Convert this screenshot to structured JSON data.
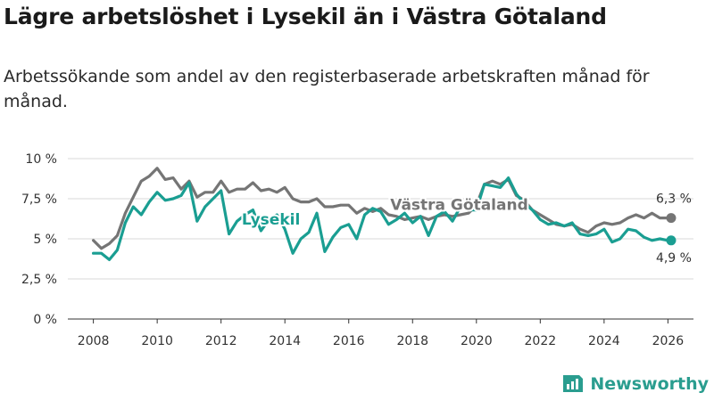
{
  "title": "Lägre arbetslöshet i Lysekil än i Västra Götaland",
  "subtitle": "Arbetssökande som andel av den registerbaserade arbetskraften månad för månad.",
  "brand": "Newsworthy",
  "colors": {
    "lysekil": "#1a9e92",
    "vg": "#757575",
    "brand": "#2a9d8f"
  },
  "chart_data": {
    "type": "line",
    "title": "Lägre arbetslöshet i Lysekil än i Västra Götaland",
    "xlabel": "",
    "ylabel": "",
    "xlim": [
      2007.2,
      2026.8
    ],
    "ylim": [
      0,
      10
    ],
    "x_ticks": [
      2008,
      2010,
      2012,
      2014,
      2016,
      2018,
      2020,
      2022,
      2024,
      2026
    ],
    "x_tick_labels": [
      "2008",
      "2010",
      "2012",
      "2014",
      "2016",
      "2018",
      "2020",
      "2022",
      "2024",
      "2026"
    ],
    "y_ticks": [
      0,
      2.5,
      5,
      7.5,
      10
    ],
    "y_tick_labels": [
      "0 %",
      "2,5 %",
      "5 %",
      "7,5 %",
      "10 %"
    ],
    "grid": true,
    "series": [
      {
        "name": "Västra Götaland",
        "end_label": "6,3 %",
        "x": [
          2008.0,
          2008.25,
          2008.5,
          2008.75,
          2009.0,
          2009.25,
          2009.5,
          2009.75,
          2010.0,
          2010.25,
          2010.5,
          2010.75,
          2011.0,
          2011.25,
          2011.5,
          2011.75,
          2012.0,
          2012.25,
          2012.5,
          2012.75,
          2013.0,
          2013.25,
          2013.5,
          2013.75,
          2014.0,
          2014.25,
          2014.5,
          2014.75,
          2015.0,
          2015.25,
          2015.5,
          2015.75,
          2016.0,
          2016.25,
          2016.5,
          2016.75,
          2017.0,
          2017.25,
          2017.5,
          2017.75,
          2018.0,
          2018.25,
          2018.5,
          2018.75,
          2019.0,
          2019.25,
          2019.5,
          2019.75,
          2020.0,
          2020.25,
          2020.5,
          2020.75,
          2021.0,
          2021.25,
          2021.5,
          2021.75,
          2022.0,
          2022.25,
          2022.5,
          2022.75,
          2023.0,
          2023.25,
          2023.5,
          2023.75,
          2024.0,
          2024.25,
          2024.5,
          2024.75,
          2025.0,
          2025.25,
          2025.5,
          2025.75,
          2026.0,
          2026.1
        ],
        "values": [
          4.9,
          4.4,
          4.7,
          5.2,
          6.6,
          7.6,
          8.6,
          8.9,
          9.4,
          8.7,
          8.8,
          8.1,
          8.6,
          7.6,
          7.9,
          7.9,
          8.6,
          7.9,
          8.1,
          8.1,
          8.5,
          8.0,
          8.1,
          7.9,
          8.2,
          7.5,
          7.3,
          7.3,
          7.5,
          7.0,
          7.0,
          7.1,
          7.1,
          6.6,
          6.9,
          6.7,
          6.9,
          6.5,
          6.4,
          6.2,
          6.3,
          6.4,
          6.2,
          6.4,
          6.5,
          6.4,
          6.5,
          6.6,
          7.1,
          8.4,
          8.6,
          8.4,
          8.7,
          7.7,
          7.4,
          6.8,
          6.5,
          6.2,
          5.9,
          5.8,
          5.9,
          5.6,
          5.4,
          5.8,
          6.0,
          5.9,
          6.0,
          6.3,
          6.5,
          6.3,
          6.6,
          6.3,
          6.3,
          6.3
        ]
      },
      {
        "name": "Lysekil",
        "end_label": "4,9 %",
        "x": [
          2008.0,
          2008.25,
          2008.5,
          2008.75,
          2009.0,
          2009.25,
          2009.5,
          2009.75,
          2010.0,
          2010.25,
          2010.5,
          2010.75,
          2011.0,
          2011.25,
          2011.5,
          2011.75,
          2012.0,
          2012.25,
          2012.5,
          2012.75,
          2013.0,
          2013.25,
          2013.5,
          2013.75,
          2014.0,
          2014.25,
          2014.5,
          2014.75,
          2015.0,
          2015.25,
          2015.5,
          2015.75,
          2016.0,
          2016.25,
          2016.5,
          2016.75,
          2017.0,
          2017.25,
          2017.5,
          2017.75,
          2018.0,
          2018.25,
          2018.5,
          2018.75,
          2019.0,
          2019.25,
          2019.5,
          2019.75,
          2020.0,
          2020.25,
          2020.5,
          2020.75,
          2021.0,
          2021.25,
          2021.5,
          2021.75,
          2022.0,
          2022.25,
          2022.5,
          2022.75,
          2023.0,
          2023.25,
          2023.5,
          2023.75,
          2024.0,
          2024.25,
          2024.5,
          2024.75,
          2025.0,
          2025.25,
          2025.5,
          2025.75,
          2026.0,
          2026.1
        ],
        "values": [
          4.1,
          4.1,
          3.7,
          4.3,
          6.0,
          7.0,
          6.5,
          7.3,
          7.9,
          7.4,
          7.5,
          7.7,
          8.5,
          6.1,
          7.0,
          7.5,
          8.0,
          5.3,
          6.1,
          6.5,
          6.8,
          5.5,
          6.2,
          6.5,
          5.6,
          4.1,
          5.0,
          5.4,
          6.6,
          4.2,
          5.1,
          5.7,
          5.9,
          5.0,
          6.5,
          6.9,
          6.7,
          5.9,
          6.2,
          6.6,
          6.0,
          6.4,
          5.2,
          6.4,
          6.7,
          6.1,
          7.0,
          6.8,
          6.8,
          8.4,
          8.3,
          8.2,
          8.8,
          7.8,
          7.2,
          6.8,
          6.2,
          5.9,
          6.0,
          5.8,
          6.0,
          5.3,
          5.2,
          5.3,
          5.6,
          4.8,
          5.0,
          5.6,
          5.5,
          5.1,
          4.9,
          5.0,
          4.9,
          4.9
        ]
      }
    ],
    "annotations": [
      {
        "text": "Västra Götaland",
        "series": "Västra Götaland"
      },
      {
        "text": "Lysekil",
        "series": "Lysekil"
      }
    ]
  }
}
